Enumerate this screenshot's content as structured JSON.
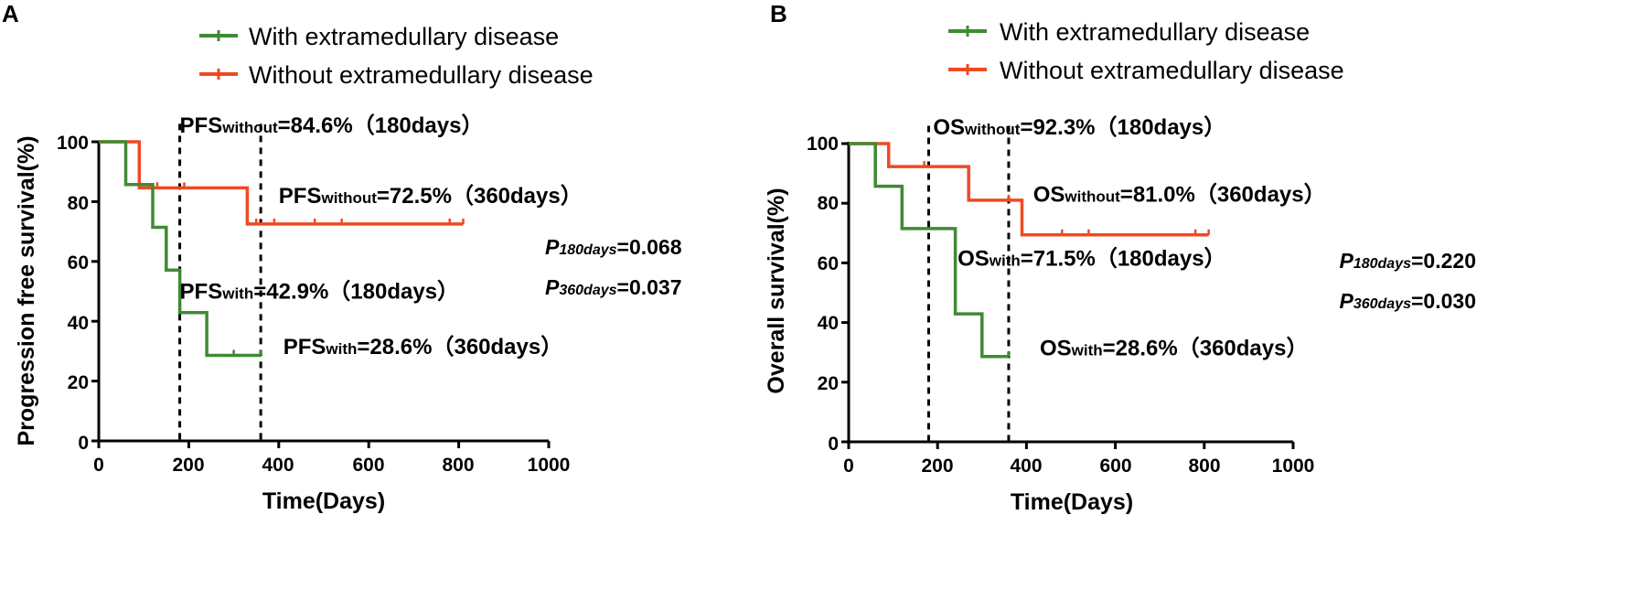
{
  "colors": {
    "with": "#3f8a34",
    "without": "#ee4a23",
    "axis": "#000000"
  },
  "chart_data": [
    {
      "panel": "A",
      "type": "line",
      "step": true,
      "xlabel": "Time(Days)",
      "ylabel": "Progression free survival(%)",
      "xlim": [
        0,
        1000
      ],
      "ylim": [
        0,
        100
      ],
      "xticks": [
        "0",
        "200",
        "400",
        "600",
        "800",
        "1000"
      ],
      "yticks": [
        "0",
        "20",
        "40",
        "60",
        "80",
        "100"
      ],
      "legend": [
        "With extramedullary disease",
        "Without extramedullary disease"
      ],
      "series": [
        {
          "name": "With extramedullary disease",
          "colorKey": "with",
          "points": [
            [
              0,
              100
            ],
            [
              60,
              100
            ],
            [
              60,
              85.7
            ],
            [
              120,
              85.7
            ],
            [
              120,
              71.4
            ],
            [
              150,
              71.4
            ],
            [
              150,
              57.1
            ],
            [
              180,
              57.1
            ],
            [
              180,
              42.9
            ],
            [
              240,
              42.9
            ],
            [
              240,
              28.6
            ],
            [
              360,
              28.6
            ]
          ],
          "censored": [
            [
              300,
              28.6
            ],
            [
              360,
              28.6
            ]
          ]
        },
        {
          "name": "Without extramedullary disease",
          "colorKey": "without",
          "points": [
            [
              0,
              100
            ],
            [
              90,
              100
            ],
            [
              90,
              84.6
            ],
            [
              330,
              84.6
            ],
            [
              330,
              72.5
            ],
            [
              810,
              72.5
            ]
          ],
          "censored": [
            [
              130,
              84.6
            ],
            [
              190,
              84.6
            ],
            [
              350,
              72.5
            ],
            [
              390,
              72.5
            ],
            [
              480,
              72.5
            ],
            [
              540,
              72.5
            ],
            [
              780,
              72.5
            ],
            [
              810,
              72.5
            ]
          ]
        }
      ],
      "vlines": [
        180,
        360
      ],
      "annotations": [
        {
          "main": "PFS",
          "sub": "without",
          "value": "=84.6%（180days）",
          "x": 180,
          "y": 103
        },
        {
          "main": "PFS",
          "sub": "without",
          "value": "=72.5%（360days）",
          "x": 400,
          "y": 79.5
        },
        {
          "main": "PFS",
          "sub": "with",
          "value": "=42.9%（180days）",
          "x": 180,
          "y": 47.5
        },
        {
          "main": "PFS",
          "sub": "with",
          "value": "=28.6%（360days）",
          "x": 410,
          "y": 29
        }
      ],
      "pvalues": [
        {
          "label": "P",
          "sub": "180days",
          "value": "=0.068"
        },
        {
          "label": "P",
          "sub": "360days",
          "value": "=0.037"
        }
      ]
    },
    {
      "panel": "B",
      "type": "line",
      "step": true,
      "xlabel": "Time(Days)",
      "ylabel": "Overall survival(%)",
      "xlim": [
        0,
        1000
      ],
      "ylim": [
        0,
        100
      ],
      "xticks": [
        "0",
        "200",
        "400",
        "600",
        "800",
        "1000"
      ],
      "yticks": [
        "0",
        "20",
        "40",
        "60",
        "80",
        "100"
      ],
      "legend": [
        "With extramedullary disease",
        "Without extramedullary disease"
      ],
      "series": [
        {
          "name": "With extramedullary disease",
          "colorKey": "with",
          "points": [
            [
              0,
              100
            ],
            [
              60,
              100
            ],
            [
              60,
              85.7
            ],
            [
              120,
              85.7
            ],
            [
              120,
              71.5
            ],
            [
              240,
              71.5
            ],
            [
              240,
              42.9
            ],
            [
              300,
              42.9
            ],
            [
              300,
              28.6
            ],
            [
              360,
              28.6
            ]
          ],
          "censored": [
            [
              360,
              28.6
            ]
          ]
        },
        {
          "name": "Without extramedullary disease",
          "colorKey": "without",
          "points": [
            [
              0,
              100
            ],
            [
              90,
              100
            ],
            [
              90,
              92.3
            ],
            [
              270,
              92.3
            ],
            [
              270,
              81.0
            ],
            [
              390,
              81.0
            ],
            [
              390,
              69.4
            ],
            [
              810,
              69.4
            ]
          ],
          "censored": [
            [
              170,
              92.3
            ],
            [
              360,
              81.0
            ],
            [
              480,
              69.4
            ],
            [
              540,
              69.4
            ],
            [
              780,
              69.4
            ],
            [
              810,
              69.4
            ]
          ]
        }
      ],
      "vlines": [
        180,
        360
      ],
      "annotations": [
        {
          "main": "OS",
          "sub": "without",
          "value": "=92.3%（180days）",
          "x": 190,
          "y": 103
        },
        {
          "main": "OS",
          "sub": "without",
          "value": "=81.0%（360days）",
          "x": 415,
          "y": 80.5
        },
        {
          "main": "OS",
          "sub": "with",
          "value": "=71.5%（180days）",
          "x": 245,
          "y": 59
        },
        {
          "main": "OS",
          "sub": "with",
          "value": "=28.6%（360days）",
          "x": 430,
          "y": 29
        }
      ],
      "pvalues": [
        {
          "label": "P",
          "sub": "180days",
          "value": "=0.220"
        },
        {
          "label": "P",
          "sub": "360days",
          "value": "=0.030"
        }
      ]
    }
  ]
}
